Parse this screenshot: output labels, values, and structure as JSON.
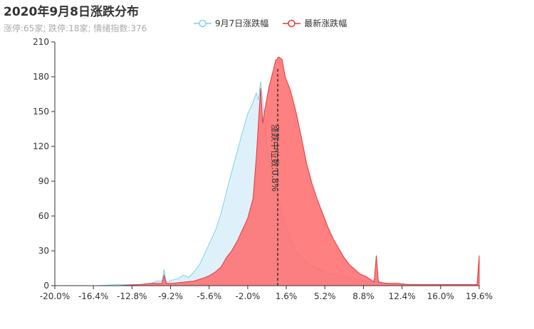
{
  "title": "2020年9月8日涨跌分布",
  "subtitle": "涨停:65家; 跌停:18家; 情绪指数:376",
  "chart_data": {
    "type": "area",
    "x_ticks": [
      "-20.0%",
      "-16.4%",
      "-12.8%",
      "-9.2%",
      "-5.6%",
      "-2.0%",
      "1.6%",
      "5.2%",
      "8.8%",
      "12.4%",
      "16.0%",
      "19.6%"
    ],
    "xlim": [
      -20.0,
      19.6
    ],
    "ylim": [
      0,
      210
    ],
    "y_ticks": [
      0,
      30,
      60,
      90,
      120,
      150,
      180,
      210
    ],
    "markline": {
      "x": 0.8,
      "label": "涨跌中位数:0.8%"
    },
    "series": [
      {
        "name": "9月7日涨跌幅",
        "color": "#7dd1ee",
        "fill": "rgba(190,228,246,0.5)",
        "points": [
          [
            -20.0,
            0
          ],
          [
            -16.0,
            0
          ],
          [
            -14.0,
            1
          ],
          [
            -12.0,
            1
          ],
          [
            -11.0,
            2
          ],
          [
            -10.5,
            4
          ],
          [
            -10.0,
            4
          ],
          [
            -9.8,
            14
          ],
          [
            -9.6,
            3
          ],
          [
            -9.0,
            5
          ],
          [
            -8.5,
            6
          ],
          [
            -8.0,
            9
          ],
          [
            -7.5,
            7
          ],
          [
            -7.0,
            12
          ],
          [
            -6.5,
            18
          ],
          [
            -6.0,
            28
          ],
          [
            -5.5,
            38
          ],
          [
            -5.0,
            48
          ],
          [
            -4.5,
            62
          ],
          [
            -4.0,
            80
          ],
          [
            -3.5,
            98
          ],
          [
            -3.0,
            115
          ],
          [
            -2.5,
            132
          ],
          [
            -2.0,
            148
          ],
          [
            -1.5,
            158
          ],
          [
            -1.2,
            166
          ],
          [
            -1.0,
            160
          ],
          [
            -0.8,
            176
          ],
          [
            -0.5,
            150
          ],
          [
            -0.2,
            120
          ],
          [
            0.2,
            100
          ],
          [
            0.6,
            85
          ],
          [
            1.0,
            70
          ],
          [
            1.5,
            52
          ],
          [
            2.0,
            40
          ],
          [
            2.5,
            30
          ],
          [
            3.0,
            24
          ],
          [
            3.5,
            20
          ],
          [
            4.0,
            17
          ],
          [
            4.5,
            15
          ],
          [
            5.0,
            13
          ],
          [
            5.5,
            11
          ],
          [
            6.0,
            10
          ],
          [
            6.5,
            9
          ],
          [
            7.0,
            8
          ],
          [
            7.5,
            7
          ],
          [
            8.0,
            6
          ],
          [
            8.5,
            5
          ],
          [
            9.0,
            4
          ],
          [
            9.5,
            3
          ],
          [
            10.0,
            6
          ],
          [
            10.5,
            2
          ],
          [
            11.0,
            2
          ],
          [
            12.0,
            1
          ],
          [
            14.0,
            1
          ],
          [
            16.0,
            0
          ],
          [
            19.6,
            0
          ]
        ]
      },
      {
        "name": "最新涨跌幅",
        "color": "#e0393e",
        "fill": "rgba(255,110,110,0.88)",
        "points": [
          [
            -20.0,
            0
          ],
          [
            -14.0,
            0
          ],
          [
            -12.0,
            1
          ],
          [
            -11.0,
            2
          ],
          [
            -10.0,
            2
          ],
          [
            -9.8,
            9
          ],
          [
            -9.6,
            2
          ],
          [
            -9.0,
            2
          ],
          [
            -8.0,
            3
          ],
          [
            -7.0,
            4
          ],
          [
            -6.0,
            7
          ],
          [
            -5.5,
            9
          ],
          [
            -5.0,
            12
          ],
          [
            -4.5,
            16
          ],
          [
            -4.0,
            24
          ],
          [
            -3.5,
            30
          ],
          [
            -3.0,
            38
          ],
          [
            -2.5,
            48
          ],
          [
            -2.0,
            58
          ],
          [
            -1.5,
            75
          ],
          [
            -1.2,
            110
          ],
          [
            -0.8,
            170
          ],
          [
            -0.6,
            140
          ],
          [
            -0.4,
            152
          ],
          [
            0.0,
            172
          ],
          [
            0.4,
            186
          ],
          [
            0.6,
            194
          ],
          [
            0.9,
            197
          ],
          [
            1.2,
            195
          ],
          [
            1.5,
            180
          ],
          [
            2.0,
            168
          ],
          [
            2.5,
            150
          ],
          [
            3.0,
            128
          ],
          [
            3.5,
            105
          ],
          [
            4.0,
            88
          ],
          [
            4.5,
            74
          ],
          [
            5.0,
            62
          ],
          [
            5.5,
            50
          ],
          [
            6.0,
            40
          ],
          [
            6.5,
            32
          ],
          [
            7.0,
            24
          ],
          [
            7.5,
            18
          ],
          [
            8.0,
            14
          ],
          [
            8.5,
            10
          ],
          [
            9.0,
            8
          ],
          [
            9.5,
            5
          ],
          [
            9.8,
            3
          ],
          [
            10.0,
            26
          ],
          [
            10.2,
            3
          ],
          [
            11.0,
            2
          ],
          [
            12.0,
            2
          ],
          [
            13.0,
            1
          ],
          [
            14.0,
            1
          ],
          [
            16.0,
            1
          ],
          [
            18.0,
            1
          ],
          [
            19.4,
            1
          ],
          [
            19.6,
            26
          ]
        ]
      }
    ]
  }
}
